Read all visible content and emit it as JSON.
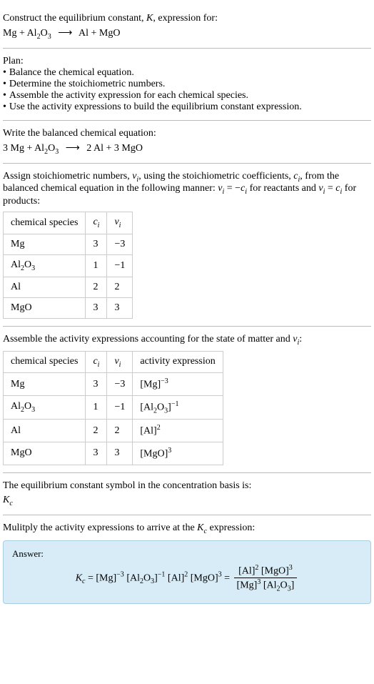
{
  "s1": {
    "prompt": "Construct the equilibrium constant, ",
    "K": "K",
    "prompt2": ", expression for:",
    "eq_lhs1": "Mg + Al",
    "eq_sub1": "2",
    "eq_mid1": "O",
    "eq_sub2": "3",
    "arrow": "⟶",
    "eq_rhs1": "Al + MgO"
  },
  "plan": {
    "title": "Plan:",
    "b1": "Balance the chemical equation.",
    "b2": "Determine the stoichiometric numbers.",
    "b3": "Assemble the activity expression for each chemical species.",
    "b4": "Use the activity expressions to build the equilibrium constant expression."
  },
  "bal": {
    "title": "Write the balanced chemical equation:",
    "lhs": "3 Mg + Al",
    "sub1": "2",
    "mid": "O",
    "sub2": "3",
    "arrow": "⟶",
    "rhs": "2 Al + 3 MgO"
  },
  "stoich": {
    "t1": "Assign stoichiometric numbers, ",
    "nu": "ν",
    "sub_i": "i",
    "t2": ", using the stoichiometric coefficients, ",
    "c": "c",
    "t3": ", from the balanced chemical equation in the following manner: ",
    "rel1a": " = −",
    "rel_reactants": " for reactants and ",
    "rel2a": " = ",
    "rel_products": " for products:",
    "headers": {
      "h1": "chemical species",
      "h2": "c",
      "h2sub": "i",
      "h3": "ν",
      "h3sub": "i"
    },
    "rows": [
      {
        "sp": "Mg",
        "sp_sub1": "",
        "sp_mid": "",
        "sp_sub2": "",
        "c": "3",
        "nu": "−3"
      },
      {
        "sp": "Al",
        "sp_sub1": "2",
        "sp_mid": "O",
        "sp_sub2": "3",
        "c": "1",
        "nu": "−1"
      },
      {
        "sp": "Al",
        "sp_sub1": "",
        "sp_mid": "",
        "sp_sub2": "",
        "c": "2",
        "nu": "2"
      },
      {
        "sp": "MgO",
        "sp_sub1": "",
        "sp_mid": "",
        "sp_sub2": "",
        "c": "3",
        "nu": "3"
      }
    ]
  },
  "act": {
    "title1": "Assemble the activity expressions accounting for the state of matter and ",
    "nu": "ν",
    "sub_i": "i",
    "title2": ":",
    "headers": {
      "h1": "chemical species",
      "h2": "c",
      "h2sub": "i",
      "h3": "ν",
      "h3sub": "i",
      "h4": "activity expression"
    },
    "rows": [
      {
        "sp": "Mg",
        "sp_sub1": "",
        "sp_mid": "",
        "sp_sub2": "",
        "c": "3",
        "nu": "−3",
        "ae": "[Mg]",
        "ae_sup": "−3",
        "ae_extra": "",
        "ae_extra_sub1": "",
        "ae_extra_mid": "",
        "ae_extra_sub2": "",
        "ae_close": ""
      },
      {
        "sp": "Al",
        "sp_sub1": "2",
        "sp_mid": "O",
        "sp_sub2": "3",
        "c": "1",
        "nu": "−1",
        "ae": "[Al",
        "ae_sup": "",
        "ae_extra": "",
        "ae_extra_sub1": "2",
        "ae_extra_mid": "O",
        "ae_extra_sub2": "3",
        "ae_close": "]",
        "ae_close_sup": "−1"
      },
      {
        "sp": "Al",
        "sp_sub1": "",
        "sp_mid": "",
        "sp_sub2": "",
        "c": "2",
        "nu": "2",
        "ae": "[Al]",
        "ae_sup": "2",
        "ae_extra": "",
        "ae_extra_sub1": "",
        "ae_extra_mid": "",
        "ae_extra_sub2": "",
        "ae_close": ""
      },
      {
        "sp": "MgO",
        "sp_sub1": "",
        "sp_mid": "",
        "sp_sub2": "",
        "c": "3",
        "nu": "3",
        "ae": "[MgO]",
        "ae_sup": "3",
        "ae_extra": "",
        "ae_extra_sub1": "",
        "ae_extra_mid": "",
        "ae_extra_sub2": "",
        "ae_close": ""
      }
    ]
  },
  "symbol": {
    "title": "The equilibrium constant symbol in the concentration basis is:",
    "K": "K",
    "sub": "c"
  },
  "mult": {
    "t1": "Mulitply the activity expressions to arrive at the ",
    "K": "K",
    "sub": "c",
    "t2": " expression:"
  },
  "ans": {
    "label": "Answer:",
    "lhs_K": "K",
    "lhs_sub": "c",
    "eq": " = ",
    "p1": "[Mg]",
    "p1_sup": "−3",
    "p2": " [Al",
    "p2_sub1": "2",
    "p2_mid": "O",
    "p2_sub2": "3",
    "p2_close": "]",
    "p2_sup": "−1",
    "p3": " [Al]",
    "p3_sup": "2",
    "p4": " [MgO]",
    "p4_sup": "3",
    "eq2": " = ",
    "num1": "[Al]",
    "num1_sup": "2",
    "num2": " [MgO]",
    "num2_sup": "3",
    "den1": "[Mg]",
    "den1_sup": "3",
    "den2": " [Al",
    "den2_sub1": "2",
    "den2_mid": "O",
    "den2_sub2": "3",
    "den2_close": "]"
  }
}
